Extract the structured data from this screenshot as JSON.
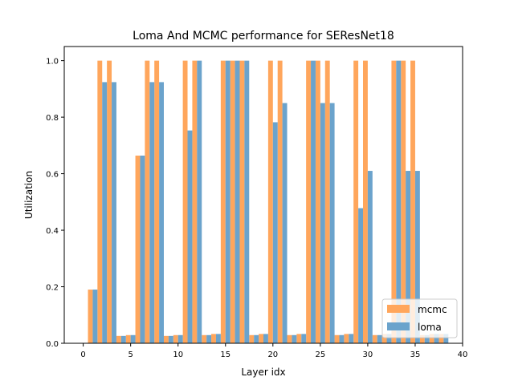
{
  "chart_data": {
    "type": "bar",
    "title": "Loma And MCMC performance for SEResNet18",
    "xlabel": "Layer idx",
    "ylabel": "Utilization",
    "xlim": [
      -2.0,
      40.0
    ],
    "ylim": [
      0.0,
      1.05
    ],
    "xticks": [
      0,
      5,
      10,
      15,
      20,
      25,
      30,
      35,
      40
    ],
    "yticks": [
      0.0,
      0.2,
      0.4,
      0.6,
      0.8,
      1.0
    ],
    "grid": false,
    "legend_position": "lower-right",
    "x": [
      1,
      2,
      3,
      4,
      5,
      6,
      7,
      8,
      9,
      10,
      11,
      12,
      13,
      14,
      15,
      16,
      17,
      18,
      19,
      20,
      21,
      22,
      23,
      24,
      25,
      26,
      27,
      28,
      29,
      30,
      31,
      32,
      33,
      34,
      35,
      36,
      37,
      38
    ],
    "series": [
      {
        "name": "mcmc",
        "color": "#ffa65c",
        "values": [
          0.19,
          1.0,
          1.0,
          0.026,
          0.029,
          0.664,
          1.0,
          1.0,
          0.026,
          0.029,
          1.0,
          1.0,
          0.029,
          0.033,
          1.0,
          1.0,
          1.0,
          0.029,
          0.033,
          1.0,
          1.0,
          0.029,
          0.033,
          1.0,
          1.0,
          1.0,
          0.029,
          0.033,
          1.0,
          1.0,
          0.029,
          0.033,
          1.0,
          1.0,
          1.0,
          0.029,
          0.033,
          0.033
        ]
      },
      {
        "name": "loma",
        "color": "#6ba3cc",
        "values": [
          0.19,
          0.924,
          0.924,
          0.026,
          0.029,
          0.664,
          0.924,
          0.924,
          0.026,
          0.029,
          0.753,
          1.0,
          0.029,
          0.033,
          1.0,
          1.0,
          1.0,
          0.029,
          0.033,
          0.782,
          0.85,
          0.029,
          0.033,
          1.0,
          0.85,
          0.85,
          0.029,
          0.033,
          0.478,
          0.61,
          0.029,
          0.033,
          1.0,
          0.61,
          0.61,
          0.029,
          0.033,
          0.033
        ]
      }
    ]
  }
}
